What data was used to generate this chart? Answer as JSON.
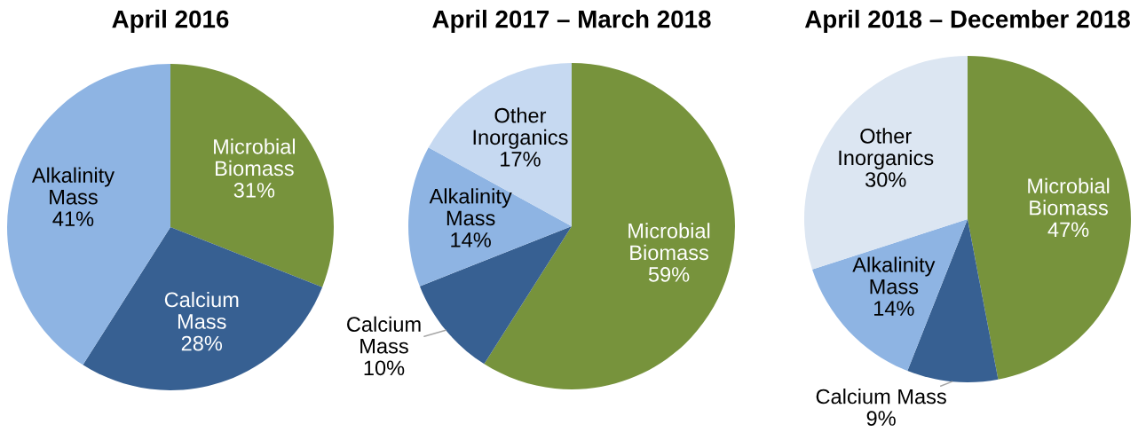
{
  "chart_data": [
    {
      "type": "pie",
      "title": "April 2016",
      "categories": [
        "Microbial Biomass",
        "Calcium Mass",
        "Alkalinity Mass"
      ],
      "values": [
        31,
        28,
        41
      ],
      "value_labels": [
        "31%",
        "28%",
        "41%"
      ],
      "colors": [
        "#77933c",
        "#376092",
        "#8eb4e3"
      ]
    },
    {
      "type": "pie",
      "title": "April 2017 – March 2018",
      "categories": [
        "Microbial Biomass",
        "Calcium Mass",
        "Alkalinity Mass",
        "Other Inorganics"
      ],
      "values": [
        59,
        10,
        14,
        17
      ],
      "value_labels": [
        "59%",
        "10%",
        "14%",
        "17%"
      ],
      "colors": [
        "#77933c",
        "#376092",
        "#8eb4e3",
        "#c6d9f1"
      ]
    },
    {
      "type": "pie",
      "title": "April 2018 – December 2018",
      "categories": [
        "Microbial Biomass",
        "Calcium Mass",
        "Alkalinity Mass",
        "Other Inorganics"
      ],
      "values": [
        47,
        9,
        14,
        30
      ],
      "value_labels": [
        "47%",
        "9%",
        "14%",
        "30%"
      ],
      "colors": [
        "#77933c",
        "#376092",
        "#8eb4e3",
        "#dce6f2"
      ]
    }
  ]
}
